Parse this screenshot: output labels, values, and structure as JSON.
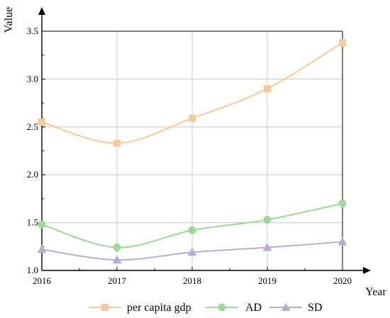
{
  "chart_data": {
    "type": "line",
    "title": "",
    "xlabel": "Year",
    "ylabel": "Value",
    "x": [
      "2016",
      "2017",
      "2018",
      "2019",
      "2020"
    ],
    "ylim": [
      1.0,
      3.5
    ],
    "yticks": [
      "1.0",
      "1.5",
      "2.0",
      "2.5",
      "3.0",
      "3.5"
    ],
    "grid": true,
    "legend_position": "bottom",
    "series": [
      {
        "name": "per capita gdp",
        "values": [
          2.55,
          2.33,
          2.59,
          2.9,
          3.38
        ],
        "color": "#F9C89B",
        "marker": "square"
      },
      {
        "name": "AD",
        "values": [
          1.48,
          1.24,
          1.42,
          1.53,
          1.7
        ],
        "color": "#9ED89A",
        "marker": "circle"
      },
      {
        "name": "SD",
        "values": [
          1.22,
          1.11,
          1.19,
          1.24,
          1.3
        ],
        "color": "#B9ABD3",
        "marker": "triangle"
      }
    ]
  }
}
